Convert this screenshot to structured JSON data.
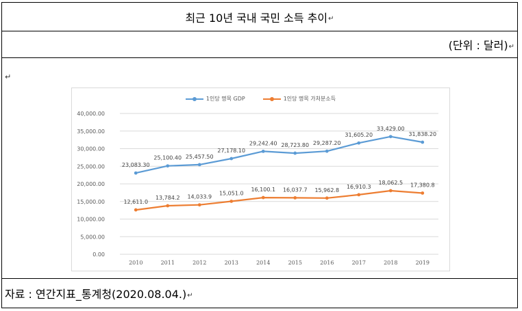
{
  "title": "최근 10년 국내 국민 소득 추이",
  "unit": "(단위 : 달러)",
  "source": "자료 : 연간지표_통계청(2020.08.04.)",
  "para_mark": "↵",
  "colors": {
    "gdp": "#5b9bd5",
    "disposable": "#ed7d31",
    "grid": "#d9d9d9"
  },
  "chart_data": {
    "type": "line",
    "categories": [
      "2010",
      "2011",
      "2012",
      "2013",
      "2014",
      "2015",
      "2016",
      "2017",
      "2018",
      "2019"
    ],
    "ylim": [
      0,
      40000
    ],
    "yticks": [
      "0.00",
      "5,000.00",
      "10,000.00",
      "15,000.00",
      "20,000.00",
      "25,000.00",
      "30,000.00",
      "35,000.00",
      "40,000.00"
    ],
    "grid": true,
    "legend": "top",
    "series": [
      {
        "name": "1인당 명목 GDP",
        "values": [
          23083.3,
          25100.4,
          25457.5,
          27178.1,
          29242.4,
          28723.8,
          29287.2,
          31605.2,
          33429.0,
          31838.2
        ],
        "labels": [
          "23,083.30",
          "25,100.40",
          "25,457.50",
          "27,178.10",
          "29,242.40",
          "28,723.80",
          "29,287.20",
          "31,605.20",
          "33,429.00",
          "31,838.20"
        ]
      },
      {
        "name": "1인당 명목 가처분소득",
        "values": [
          12611.0,
          13784.2,
          14033.9,
          15051.0,
          16100.1,
          16037.7,
          15962.8,
          16910.3,
          18062.5,
          17380.8
        ],
        "labels": [
          "12,611.0",
          "13,784.2",
          "14,033.9",
          "15,051.0",
          "16,100.1",
          "16,037.7",
          "15,962.8",
          "16,910.3",
          "18,062.5",
          "17,380.8"
        ]
      }
    ]
  }
}
